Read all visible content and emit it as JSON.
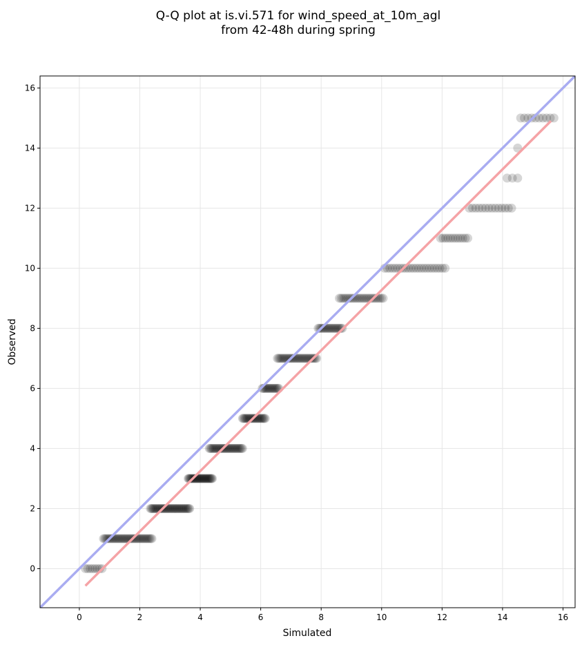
{
  "chart_data": {
    "type": "scatter",
    "title_lines": [
      "Q-Q plot at is.vi.571 for wind_speed_at_10m_agl",
      "from 42-48h during spring"
    ],
    "xlabel": "Simulated",
    "ylabel": "Observed",
    "xlim": [
      -1.3,
      16.4
    ],
    "ylim": [
      -1.3,
      16.4
    ],
    "xticks": [
      0,
      2,
      4,
      6,
      8,
      10,
      12,
      14,
      16
    ],
    "yticks": [
      0,
      2,
      4,
      6,
      8,
      10,
      12,
      14,
      16
    ],
    "grid": true,
    "identity_line": {
      "from": [
        -1.3,
        -1.3
      ],
      "to": [
        16.4,
        16.4
      ],
      "color": "#a9acf1"
    },
    "fit_line": {
      "from": [
        0.2,
        -0.57
      ],
      "to": [
        15.6,
        14.9
      ],
      "color": "#f5a3a6"
    },
    "point_color": "#000000",
    "point_opacity": 0.16,
    "bands": [
      {
        "y": 0,
        "x_min": 0.2,
        "x_max": 0.75,
        "n": 8
      },
      {
        "y": 1,
        "x_min": 0.8,
        "x_max": 2.4,
        "n": 40
      },
      {
        "y": 2,
        "x_min": 2.35,
        "x_max": 3.65,
        "n": 40
      },
      {
        "y": 3,
        "x_min": 3.6,
        "x_max": 4.4,
        "n": 32
      },
      {
        "y": 4,
        "x_min": 4.3,
        "x_max": 5.4,
        "n": 32
      },
      {
        "y": 5,
        "x_min": 5.4,
        "x_max": 6.15,
        "n": 24
      },
      {
        "y": 6,
        "x_min": 6.05,
        "x_max": 6.6,
        "n": 16
      },
      {
        "y": 7,
        "x_min": 6.55,
        "x_max": 7.85,
        "n": 32
      },
      {
        "y": 8,
        "x_min": 7.9,
        "x_max": 8.7,
        "n": 20
      },
      {
        "y": 9,
        "x_min": 8.6,
        "x_max": 10.05,
        "n": 26
      },
      {
        "y": 10,
        "x_min": 10.1,
        "x_max": 12.1,
        "n": 24
      },
      {
        "y": 11,
        "x_min": 11.95,
        "x_max": 12.85,
        "n": 12
      },
      {
        "y": 12,
        "x_min": 12.9,
        "x_max": 14.3,
        "n": 14
      },
      {
        "y": 13,
        "x_min": 14.15,
        "x_max": 14.5,
        "n": 3
      },
      {
        "y": 14,
        "x_min": 14.5,
        "x_max": 14.5,
        "n": 1
      },
      {
        "y": 15,
        "x_min": 14.6,
        "x_max": 15.7,
        "n": 10
      }
    ]
  }
}
